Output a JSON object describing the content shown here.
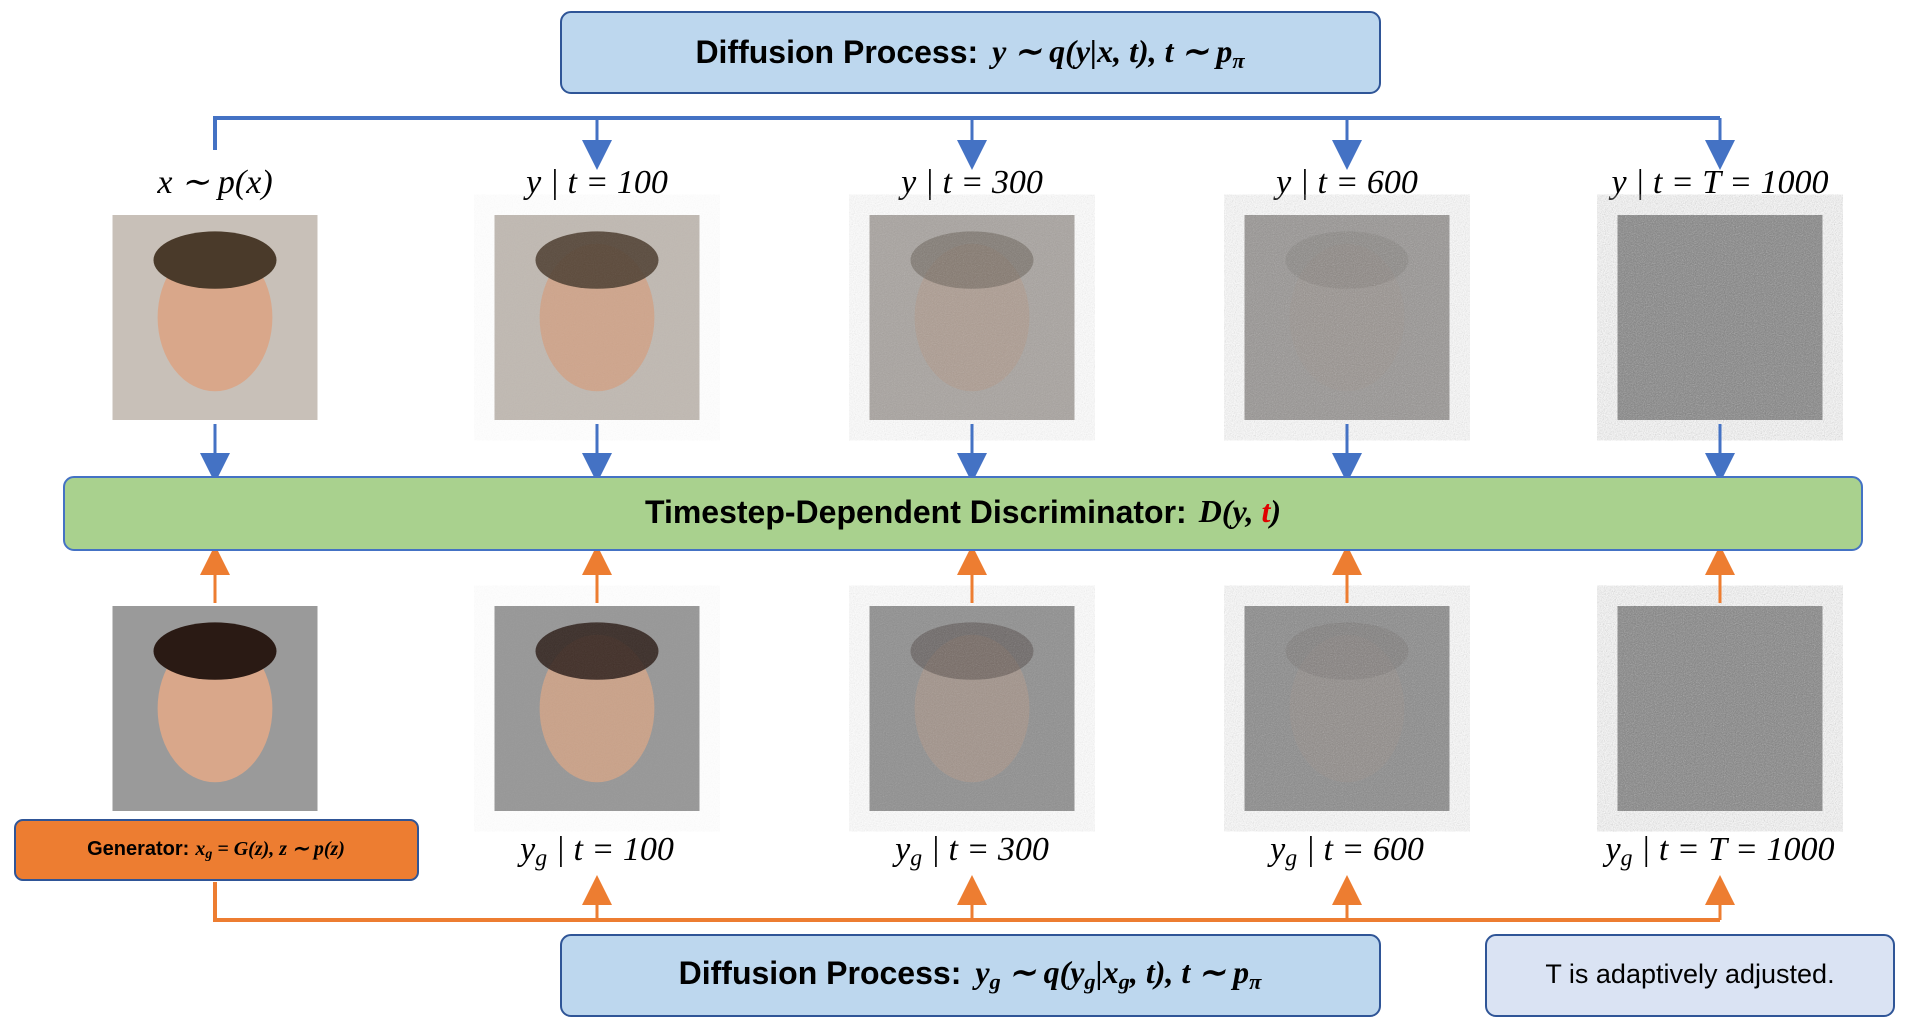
{
  "top_box": {
    "label": "Diffusion Process:",
    "formula": [
      "y ∼ q(y|x, t), t ∼ p",
      "π"
    ]
  },
  "top_labels": [
    [
      "x ∼ p(x)"
    ],
    [
      "y | t = 100"
    ],
    [
      "y | t = 300"
    ],
    [
      "y | t = 600"
    ],
    [
      "y | t = T = 1000"
    ]
  ],
  "discriminator": {
    "label": "Timestep-Dependent Discriminator:",
    "formula": [
      "D(y, ",
      "t",
      ")"
    ]
  },
  "generator": {
    "label": "Generator:",
    "formula": [
      "x",
      "g",
      " = G(z), z ∼ p(z)"
    ]
  },
  "bottom_labels": [
    [
      "y",
      "g",
      " | t = 100"
    ],
    [
      "y",
      "g",
      " | t = 300"
    ],
    [
      "y",
      "g",
      " | t = 600"
    ],
    [
      "y",
      "g",
      " | t = T = 1000"
    ]
  ],
  "bottom_box": {
    "label": "Diffusion Process:",
    "formula": [
      "y",
      "g",
      " ∼ q(y",
      "g",
      "|x",
      "g",
      ", t), t ∼ p",
      "π"
    ]
  },
  "note": "T is adaptively adjusted."
}
